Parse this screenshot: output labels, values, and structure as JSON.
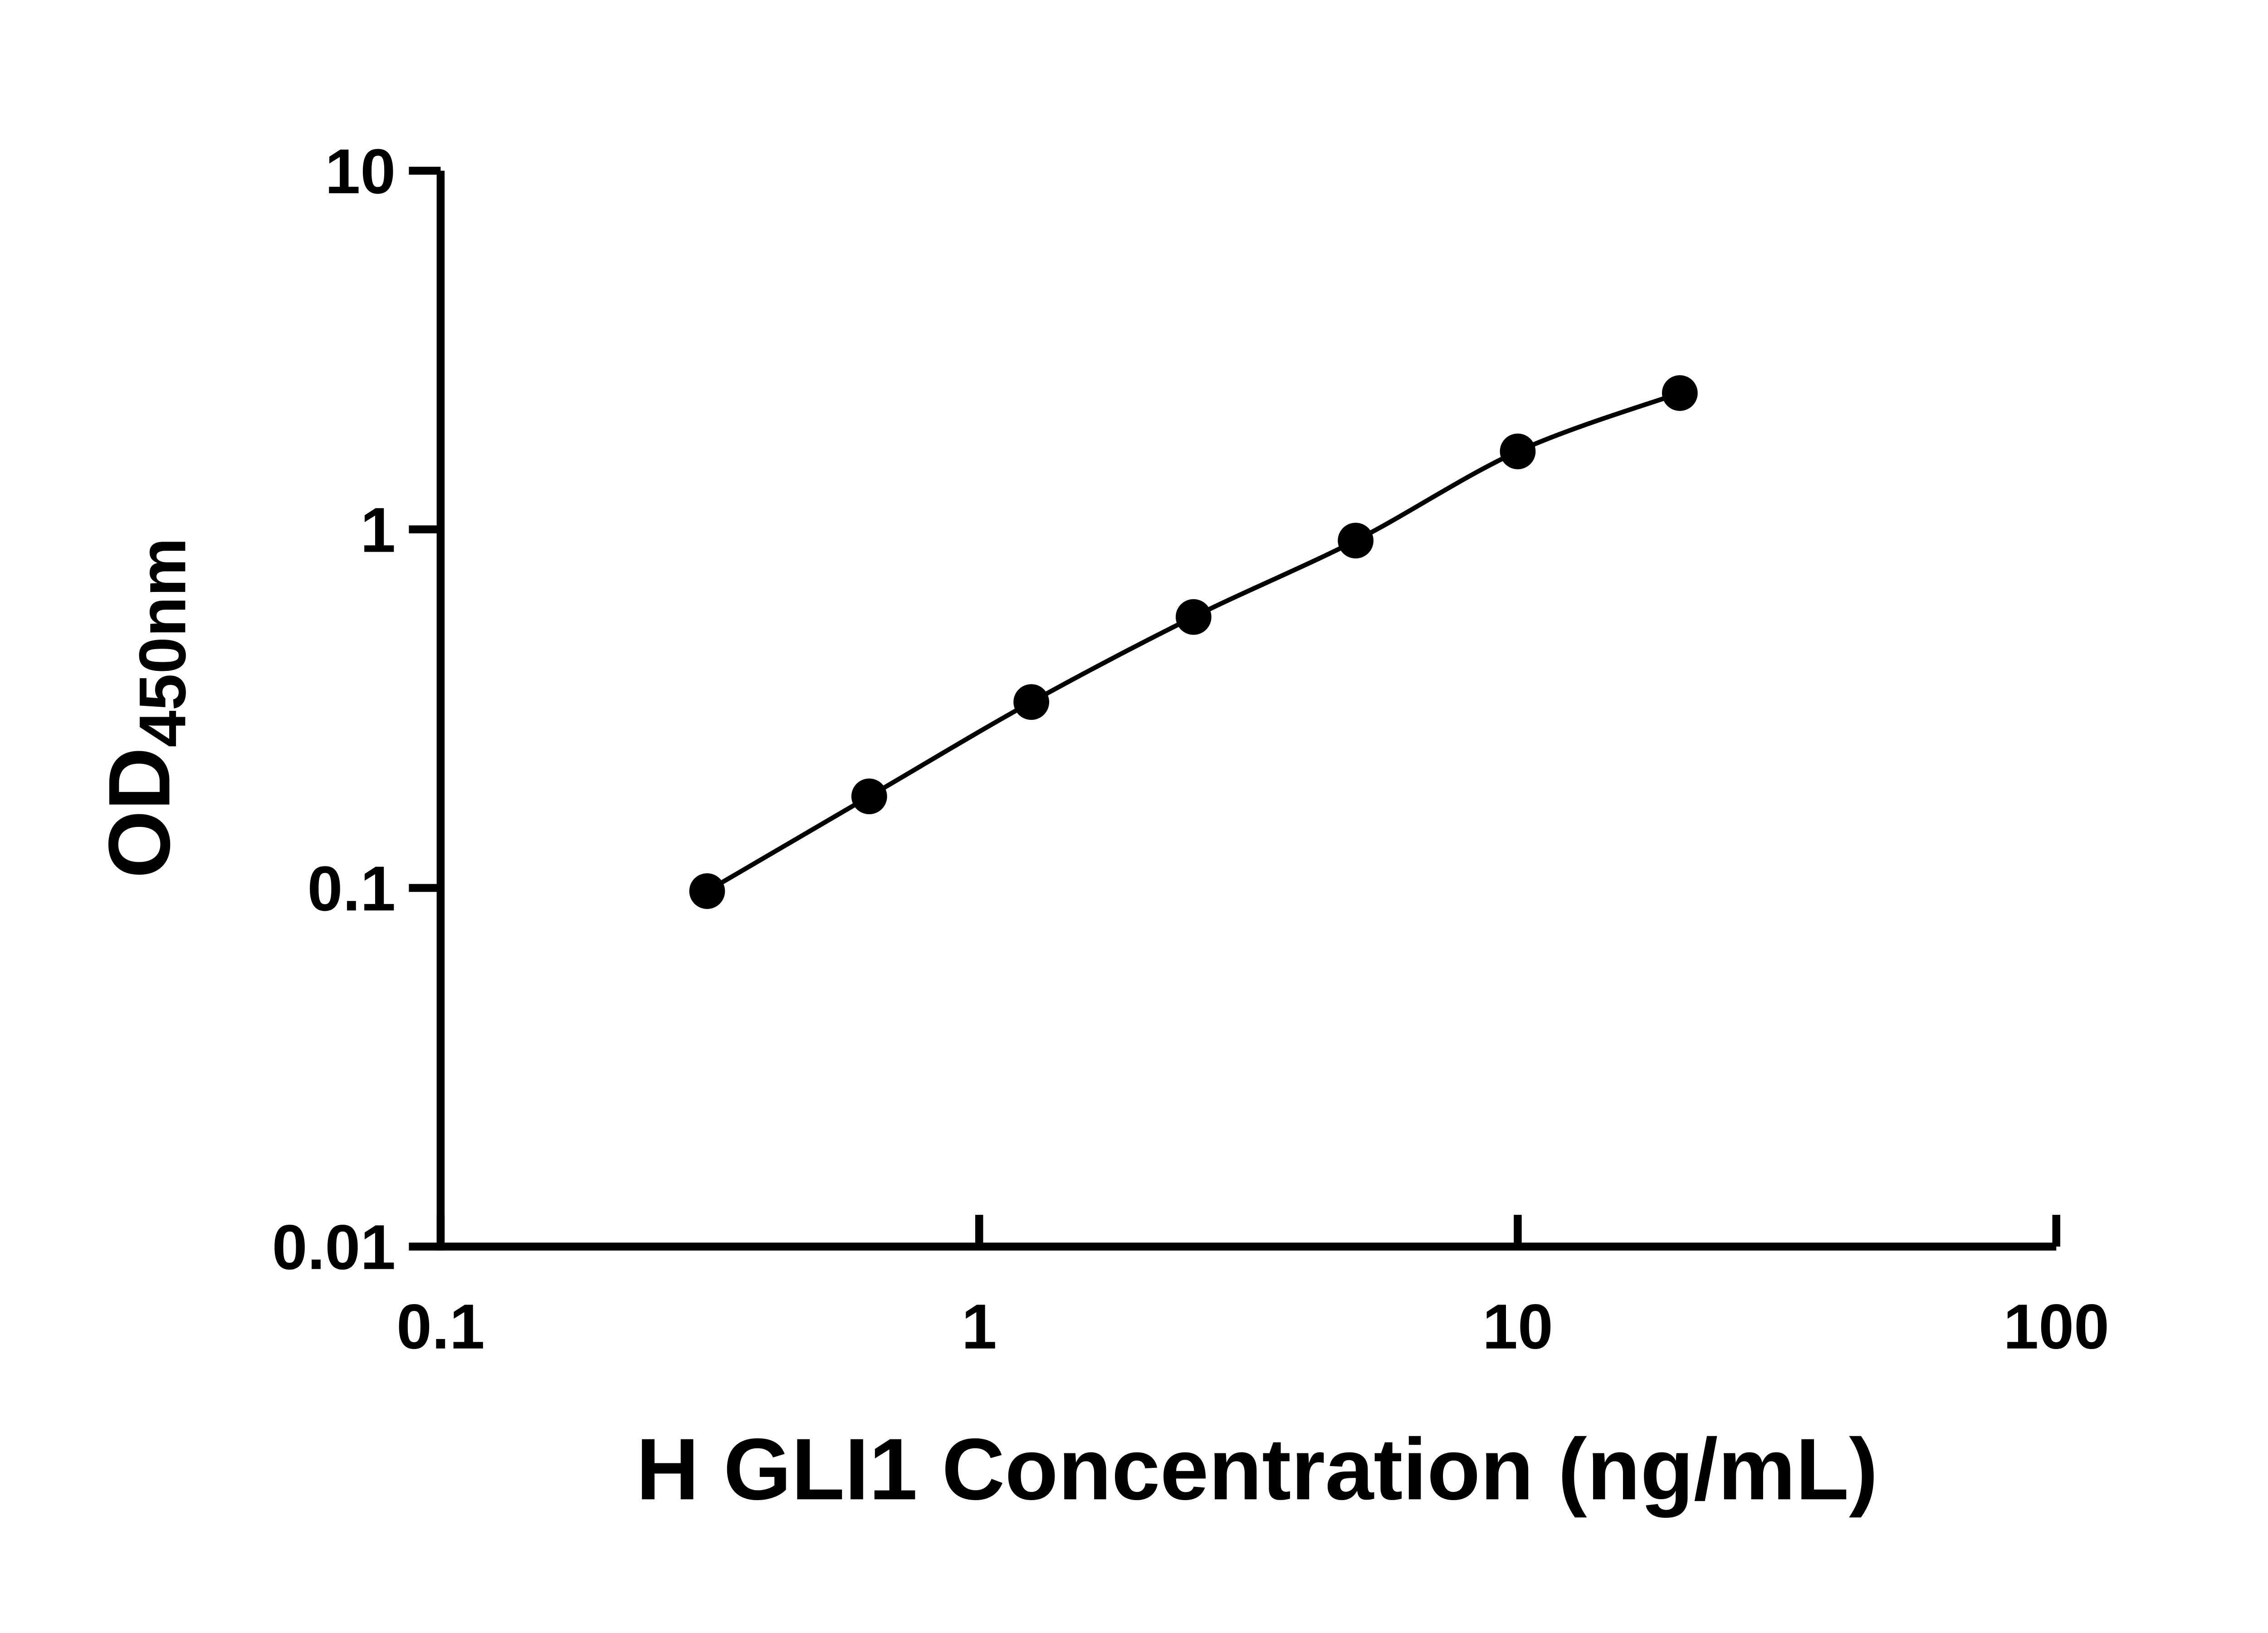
{
  "page": {
    "background": "#ffffff"
  },
  "chart_data": {
    "type": "line",
    "x": [
      0.3125,
      0.625,
      1.25,
      2.5,
      5,
      10,
      20
    ],
    "y": [
      0.098,
      0.18,
      0.33,
      0.57,
      0.93,
      1.65,
      2.4
    ],
    "title": "",
    "xlabel": "H GLI1 Concentration (ng/mL)",
    "ylabel_main": "OD",
    "ylabel_sub": "450nm",
    "xscale": "log",
    "yscale": "log",
    "xlim": [
      0.1,
      100
    ],
    "ylim": [
      0.01,
      10
    ],
    "x_ticks": [
      0.1,
      1,
      10,
      100
    ],
    "y_ticks": [
      0.01,
      0.1,
      1,
      10
    ],
    "x_tick_labels": [
      "0.1",
      "1",
      "10",
      "100"
    ],
    "y_tick_labels": [
      "0.01",
      "0.1",
      "1",
      "10"
    ],
    "grid": false,
    "legend_position": "none",
    "marker": "filled-circle",
    "colors": {
      "axis": "#000000",
      "line": "#000000",
      "marker": "#000000",
      "text": "#000000",
      "background": "#ffffff"
    }
  }
}
